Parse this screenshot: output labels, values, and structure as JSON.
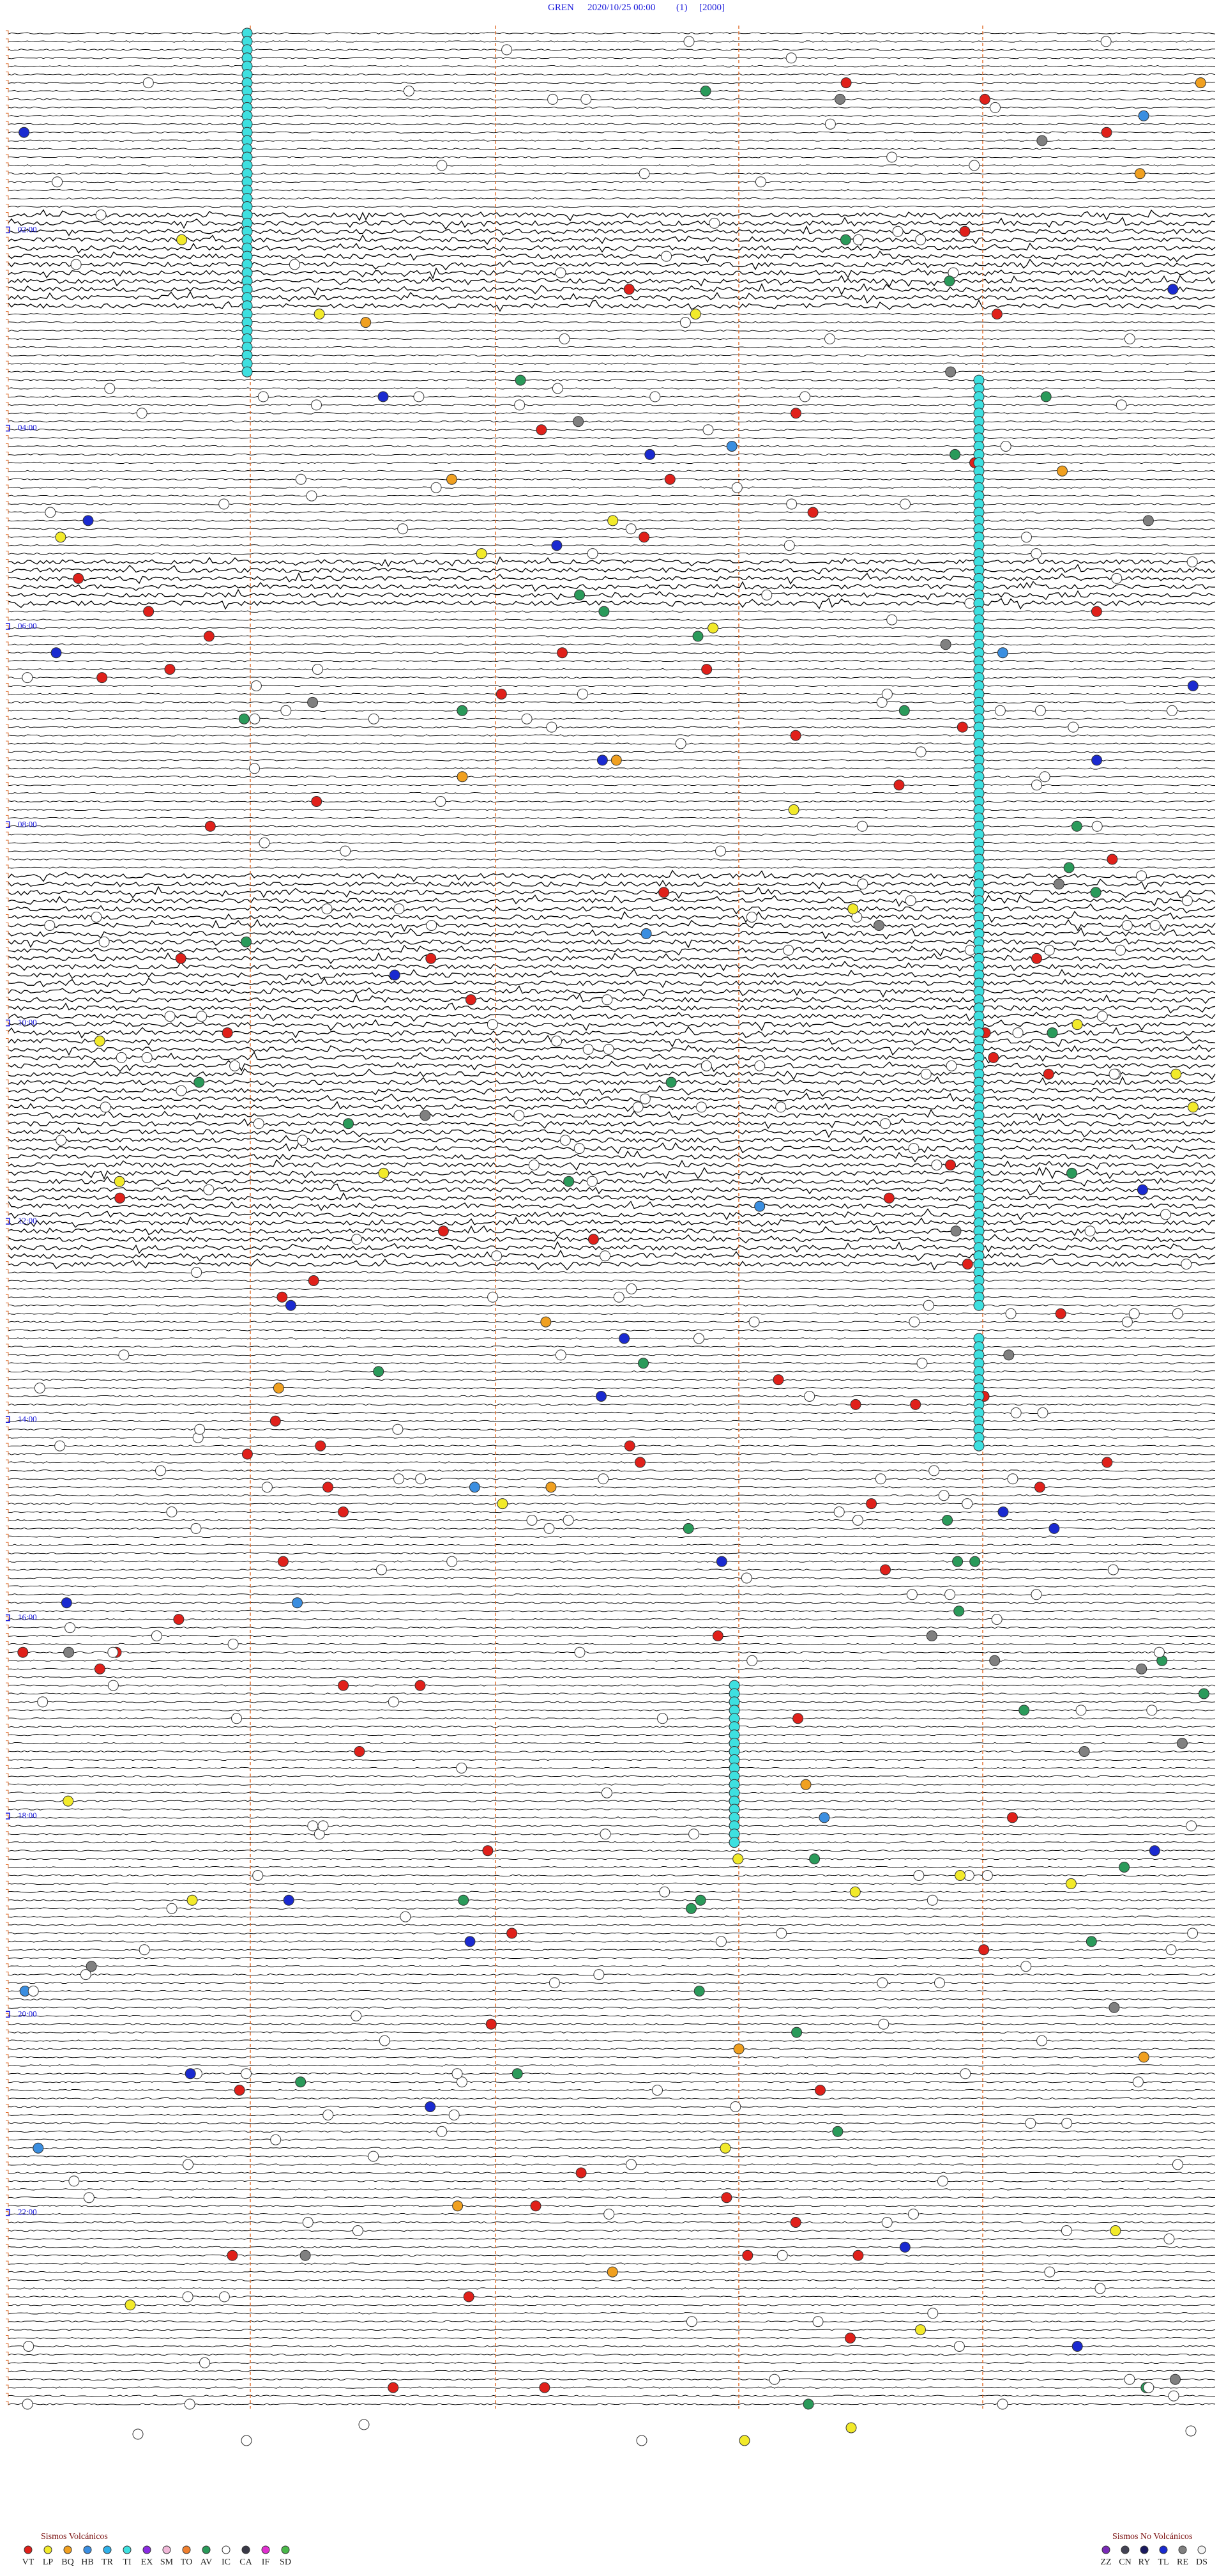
{
  "header": {
    "station": "GREN",
    "datetime": "2020/10/25 00:00",
    "channel": "(1)",
    "scale": "[2000]"
  },
  "time_labels": [
    "02:00",
    "04:00",
    "06:00",
    "08:00",
    "10:00",
    "12:00",
    "14:00",
    "16:00",
    "18:00",
    "20:00",
    "22:00"
  ],
  "legend": {
    "volcanic": {
      "title": "Sismos Volcánicos",
      "items": [
        {
          "code": "VT",
          "color": "#e0201a"
        },
        {
          "code": "LP",
          "color": "#f2ea2a"
        },
        {
          "code": "BQ",
          "color": "#f0a020"
        },
        {
          "code": "HB",
          "color": "#3a8ee0"
        },
        {
          "code": "TR",
          "color": "#2fb0e8"
        },
        {
          "code": "TI",
          "color": "#3ee0e0"
        },
        {
          "code": "EX",
          "color": "#8a2be2"
        },
        {
          "code": "SM",
          "color": "#f0b8d8"
        },
        {
          "code": "TO",
          "color": "#f08030"
        },
        {
          "code": "AV",
          "color": "#2a9a5a"
        },
        {
          "code": "IC",
          "color": "#ffffff"
        },
        {
          "code": "CA",
          "color": "#3a3a48"
        },
        {
          "code": "IF",
          "color": "#e030d0"
        },
        {
          "code": "SD",
          "color": "#4ab84a"
        }
      ]
    },
    "non_volcanic": {
      "title": "Sismos No Volcánicos",
      "items": [
        {
          "code": "ZZ",
          "color": "#7a2ab8"
        },
        {
          "code": "CN",
          "color": "#444455"
        },
        {
          "code": "RY",
          "color": "#1a1a60"
        },
        {
          "code": "TL",
          "color": "#1a2ad0"
        },
        {
          "code": "RE",
          "color": "#808080"
        },
        {
          "code": "DS",
          "color": "#f4f4f4"
        }
      ]
    }
  }
}
